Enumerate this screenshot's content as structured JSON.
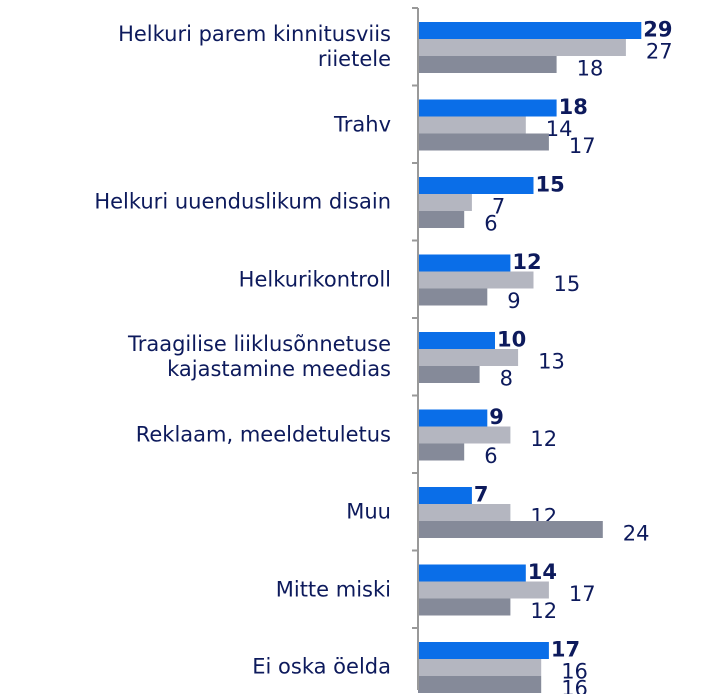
{
  "chart_data": {
    "type": "bar",
    "orientation": "horizontal",
    "categories": [
      "Helkuri parem kinnitusviis\nriietele",
      "Trahv",
      "Helkuri uuenduslikum disain",
      "Helkurikontroll",
      "Traagilise liiklusõnnetuse\nkajastamine meedias",
      "Reklaam, meeldetuletus",
      "Muu",
      "Mitte miski",
      "Ei oska öelda"
    ],
    "series": [
      {
        "color": "#0a6ee8",
        "values": [
          29,
          18,
          15,
          12,
          10,
          9,
          7,
          14,
          17
        ]
      },
      {
        "color": "#b4b6c0",
        "values": [
          27,
          14,
          7,
          15,
          13,
          12,
          12,
          17,
          16
        ]
      },
      {
        "color": "#858a99",
        "values": [
          18,
          17,
          6,
          9,
          8,
          6,
          24,
          12,
          16
        ]
      }
    ],
    "xlim": [
      0,
      30
    ]
  }
}
